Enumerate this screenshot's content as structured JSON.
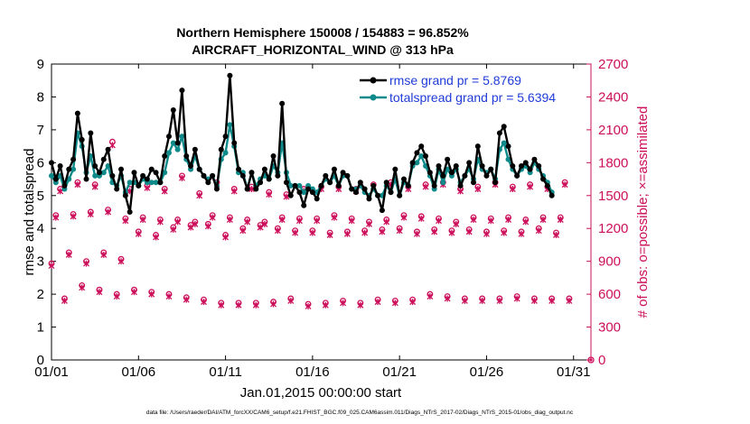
{
  "chart_data": {
    "type": "line",
    "title": "Northern Hemisphere 150008 / 154883 = 96.852%",
    "subtitle": "AIRCRAFT_HORIZONTAL_WIND @ 313 hPa",
    "xlabel": "Jan.01,2015 00:00:00 start",
    "ylabel": "rmse and totalspread",
    "ylabel_right": "# of obs: o=possible; ×=assimilated",
    "footer": "data file: /Users/raeder/DAI/ATM_forcXX/CAM6_setup/f.e21.FHIST_BGC.f09_025.CAM6assim.011/Diags_NTrS_2017-02/Diags_NTrS_2015-01/obs_diag_output.nc",
    "x_range": [
      1,
      32
    ],
    "ylim": [
      0,
      9
    ],
    "ylim_right": [
      0,
      2700
    ],
    "x_ticks": [
      1,
      6,
      11,
      16,
      21,
      26,
      31
    ],
    "x_tick_labels": [
      "01/01",
      "01/06",
      "01/11",
      "01/16",
      "01/21",
      "01/26",
      "01/31"
    ],
    "y_ticks": [
      0,
      1,
      2,
      3,
      4,
      5,
      6,
      7,
      8,
      9
    ],
    "y_tick_labels": [
      "0",
      "1",
      "2",
      "3",
      "4",
      "5",
      "6",
      "7",
      "8",
      "9"
    ],
    "y_ticks_right": [
      0,
      300,
      600,
      900,
      1200,
      1500,
      1800,
      2100,
      2400,
      2700
    ],
    "y_tick_labels_right": [
      "0",
      "300",
      "600",
      "900",
      "1200",
      "1500",
      "1800",
      "2100",
      "2400",
      "2700"
    ],
    "colors": {
      "rmse": "#000000",
      "spread": "#0e8a8a",
      "obs": "#cc0f5a",
      "legend_text": "#1f3bd8"
    },
    "series": [
      {
        "name": "rmse grand pr = 5.8769",
        "x_start": 1.0,
        "x_step": 0.25,
        "values": [
          6.0,
          5.5,
          5.9,
          5.3,
          5.8,
          6.1,
          7.5,
          6.7,
          5.5,
          6.9,
          5.9,
          5.7,
          6.1,
          6.4,
          5.6,
          5.2,
          5.8,
          5.0,
          4.5,
          5.7,
          5.3,
          5.6,
          5.5,
          5.8,
          5.7,
          5.4,
          6.2,
          6.8,
          7.6,
          6.6,
          8.2,
          6.2,
          5.9,
          6.4,
          5.8,
          5.6,
          5.4,
          5.6,
          5.2,
          6.4,
          6.8,
          8.65,
          6.6,
          5.8,
          5.6,
          5.2,
          5.7,
          5.2,
          5.4,
          5.8,
          5.5,
          6.2,
          5.6,
          7.8,
          5.4,
          5.0,
          5.3,
          5.1,
          4.7,
          5.2,
          5.1,
          4.9,
          5.3,
          5.6,
          5.4,
          5.8,
          5.3,
          5.7,
          5.6,
          5.2,
          5.1,
          5.4,
          5.2,
          4.9,
          5.3,
          5.0,
          4.55,
          5.4,
          5.1,
          5.8,
          5.0,
          5.5,
          5.3,
          6.0,
          6.3,
          6.5,
          6.2,
          5.7,
          5.3,
          5.9,
          5.6,
          6.1,
          5.7,
          5.9,
          5.3,
          5.6,
          6.0,
          5.4,
          6.5,
          5.9,
          5.6,
          5.8,
          5.4,
          6.9,
          7.1,
          6.5,
          5.9,
          5.6,
          5.9,
          6.0,
          5.8,
          6.1,
          5.9,
          5.5,
          5.3,
          5.0
        ]
      },
      {
        "name": "totalspread grand pr = 5.6394",
        "x_start": 1.0,
        "x_step": 0.25,
        "values": [
          5.6,
          5.4,
          5.6,
          5.2,
          5.5,
          5.8,
          6.9,
          6.5,
          5.7,
          6.2,
          5.6,
          5.6,
          5.7,
          5.9,
          5.4,
          5.3,
          5.6,
          5.1,
          5.4,
          5.4,
          5.3,
          5.5,
          5.4,
          5.4,
          5.4,
          5.4,
          5.7,
          6.3,
          6.6,
          6.4,
          6.8,
          6.1,
          5.8,
          6.2,
          5.8,
          5.6,
          5.5,
          5.6,
          5.3,
          6.1,
          6.3,
          7.15,
          6.5,
          5.7,
          5.7,
          5.2,
          5.7,
          5.3,
          5.5,
          5.6,
          5.5,
          5.9,
          5.7,
          6.6,
          5.7,
          5.3,
          5.3,
          5.3,
          5.1,
          5.3,
          5.2,
          5.1,
          5.3,
          5.5,
          5.4,
          5.6,
          5.3,
          5.6,
          5.6,
          5.2,
          5.2,
          5.3,
          5.1,
          5.0,
          5.2,
          5.0,
          5.0,
          5.3,
          5.1,
          5.5,
          5.0,
          5.4,
          5.3,
          5.9,
          6.0,
          6.2,
          5.9,
          5.6,
          5.2,
          5.8,
          5.4,
          5.8,
          5.6,
          5.8,
          5.4,
          5.6,
          5.8,
          5.5,
          6.1,
          5.8,
          5.7,
          5.8,
          5.5,
          6.4,
          6.6,
          6.1,
          5.8,
          5.6,
          5.8,
          5.9,
          5.7,
          6.0,
          5.8,
          5.6,
          5.4,
          5.1
        ]
      },
      {
        "name": "# of obs possible",
        "x_start": 1.0,
        "x_step": 0.25,
        "values": [
          880,
          1320,
          1560,
          560,
          980,
          1330,
          1620,
          680,
          900,
          1350,
          1600,
          640,
          980,
          1370,
          1990,
          600,
          920,
          1290,
          1560,
          640,
          1170,
          1300,
          1590,
          620,
          1140,
          1280,
          1560,
          600,
          1210,
          1280,
          1680,
          570,
          1230,
          1260,
          1520,
          550,
          1240,
          1320,
          1620,
          520,
          1140,
          1300,
          1560,
          520,
          1200,
          1280,
          1580,
          520,
          1230,
          1260,
          1530,
          530,
          1200,
          1300,
          1510,
          560,
          1180,
          1290,
          1560,
          510,
          1180,
          1290,
          1580,
          520,
          1160,
          1320,
          1580,
          540,
          1170,
          1290,
          1560,
          520,
          1180,
          1260,
          1600,
          550,
          1190,
          1280,
          1620,
          540,
          1200,
          1320,
          1580,
          550,
          1170,
          1310,
          1600,
          600,
          1190,
          1290,
          1620,
          580,
          1180,
          1260,
          1560,
          560,
          1190,
          1300,
          1580,
          560,
          1170,
          1290,
          1620,
          560,
          1180,
          1300,
          1580,
          580,
          1170,
          1280,
          1600,
          560,
          1200,
          1300,
          1580,
          560,
          1160,
          1300,
          1620,
          560
        ]
      },
      {
        "name": "# of obs assimilated",
        "x_start": 1.0,
        "x_step": 0.25,
        "values": [
          860,
          1300,
          1540,
          540,
          960,
          1310,
          1600,
          660,
          880,
          1330,
          1580,
          620,
          960,
          1350,
          1960,
          580,
          900,
          1270,
          1540,
          620,
          1150,
          1280,
          1570,
          600,
          1120,
          1260,
          1540,
          580,
          1190,
          1260,
          1660,
          550,
          1210,
          1240,
          1500,
          530,
          1220,
          1300,
          1600,
          500,
          1120,
          1280,
          1540,
          500,
          1180,
          1260,
          1560,
          500,
          1210,
          1240,
          1510,
          510,
          1180,
          1280,
          1490,
          540,
          1160,
          1270,
          1540,
          490,
          1160,
          1270,
          1560,
          500,
          1140,
          1300,
          1560,
          520,
          1150,
          1270,
          1540,
          500,
          1160,
          1240,
          1580,
          530,
          1170,
          1260,
          1600,
          520,
          1180,
          1300,
          1560,
          530,
          1150,
          1290,
          1580,
          580,
          1170,
          1270,
          1600,
          560,
          1160,
          1240,
          1540,
          540,
          1170,
          1280,
          1560,
          540,
          1150,
          1270,
          1600,
          540,
          1160,
          1280,
          1560,
          560,
          1150,
          1260,
          1580,
          540,
          1180,
          1280,
          1560,
          540,
          1140,
          1280,
          1600,
          540
        ]
      }
    ]
  }
}
